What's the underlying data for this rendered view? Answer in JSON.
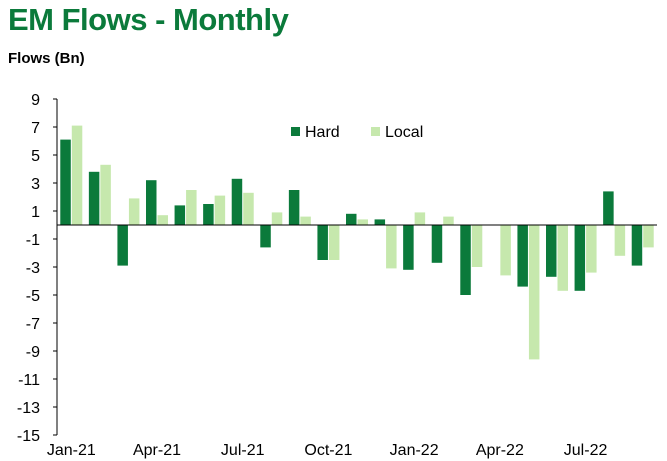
{
  "title": "EM Flows - Monthly",
  "ylabel": "Flows (Bn)",
  "colors": {
    "hard": "#0b7a3b",
    "local": "#c6e8ad",
    "title": "#0b7a3b"
  },
  "chart_data": {
    "type": "bar",
    "title": "EM Flows - Monthly",
    "ylabel": "Flows (Bn)",
    "xlabel": "",
    "ylim": [
      -15,
      9
    ],
    "yticks": [
      9,
      7,
      5,
      3,
      1,
      -1,
      -3,
      -5,
      -7,
      -9,
      -11,
      -13,
      -15
    ],
    "categories": [
      "Jan-21",
      "Feb-21",
      "Mar-21",
      "Apr-21",
      "May-21",
      "Jun-21",
      "Jul-21",
      "Aug-21",
      "Sep-21",
      "Oct-21",
      "Nov-21",
      "Dec-21",
      "Jan-22",
      "Feb-22",
      "Mar-22",
      "Apr-22",
      "May-22",
      "Jun-22",
      "Jul-22",
      "Aug-22",
      "Sep-22"
    ],
    "xtick_labels": [
      "Jan-21",
      "",
      "",
      "Apr-21",
      "",
      "",
      "Jul-21",
      "",
      "",
      "Oct-21",
      "",
      "",
      "Jan-22",
      "",
      "",
      "Apr-22",
      "",
      "",
      "Jul-22",
      "",
      ""
    ],
    "series": [
      {
        "name": "Hard",
        "values": [
          6.1,
          3.8,
          -2.9,
          3.2,
          1.4,
          1.5,
          3.3,
          -1.6,
          2.5,
          -2.5,
          0.8,
          0.4,
          -3.2,
          -2.7,
          -5.0,
          0.0,
          -4.4,
          -3.7,
          -4.7,
          2.4,
          -2.9
        ]
      },
      {
        "name": "Local",
        "values": [
          7.1,
          4.3,
          1.9,
          0.7,
          2.5,
          2.1,
          2.3,
          0.9,
          0.6,
          -2.5,
          0.4,
          -3.1,
          0.9,
          0.6,
          -3.0,
          -3.6,
          -9.6,
          -4.7,
          -3.4,
          -2.2,
          -1.6
        ]
      }
    ],
    "legend": "top-center",
    "grid": false
  }
}
